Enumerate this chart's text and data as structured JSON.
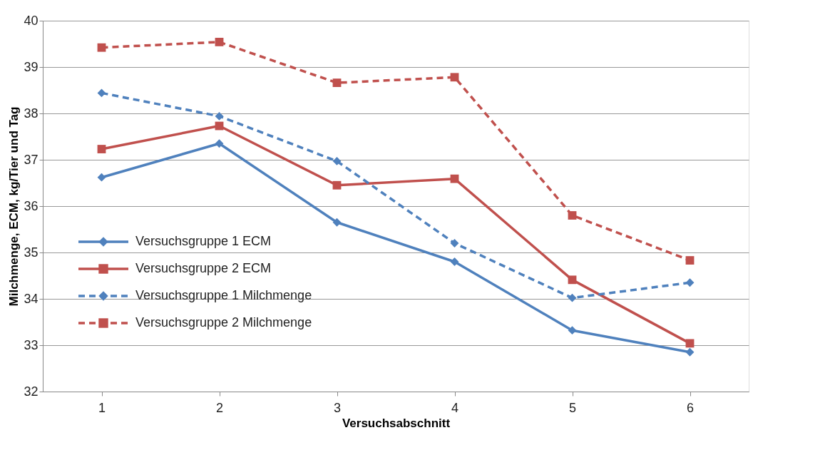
{
  "chart_data": {
    "type": "line",
    "xlabel": "Versuchsabschnitt",
    "ylabel": "Milchmenge, ECM, kg/Tier und Tag",
    "categories": [
      "1",
      "2",
      "3",
      "4",
      "5",
      "6"
    ],
    "series": [
      {
        "name": "Versuchsgruppe 1 ECM",
        "color": "#4f81bd",
        "marker": "diamond",
        "line_style": "solid",
        "values": [
          36.62,
          37.35,
          35.65,
          34.8,
          33.32,
          32.85
        ]
      },
      {
        "name": "Versuchsgruppe 2 ECM",
        "color": "#c0504d",
        "marker": "square",
        "line_style": "solid",
        "values": [
          37.23,
          37.73,
          36.45,
          36.59,
          34.41,
          33.04
        ]
      },
      {
        "name": "Versuchsgruppe 1 Milchmenge",
        "color": "#4f81bd",
        "marker": "diamond",
        "line_style": "dashed",
        "values": [
          38.44,
          37.94,
          36.97,
          35.2,
          34.02,
          34.35
        ]
      },
      {
        "name": "Versuchsgruppe 2 Milchmenge",
        "color": "#c0504d",
        "marker": "square",
        "line_style": "dashed",
        "values": [
          39.42,
          39.54,
          38.66,
          38.78,
          35.8,
          34.83
        ]
      }
    ],
    "ylim": [
      32,
      40
    ],
    "yticks": [
      32,
      33,
      34,
      35,
      36,
      37,
      38,
      39,
      40
    ],
    "grid": "y",
    "legend": "left"
  }
}
